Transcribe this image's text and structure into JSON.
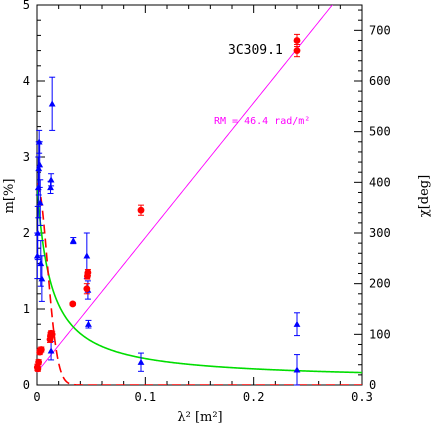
{
  "chart_data": {
    "type": "scatter",
    "source_label": "3C309.1",
    "rm_label": "RM =  46.4 rad/m²",
    "xlabel": "λ² [m²]",
    "ylabel_left": "m[%]",
    "ylabel_right": "χ[deg]",
    "xlim": [
      0,
      0.3
    ],
    "ylim_left": [
      0,
      5
    ],
    "ylim_right": [
      0,
      750
    ],
    "x_ticks": [
      0,
      0.1,
      0.2,
      0.3
    ],
    "x_tick_labels": [
      "0",
      "0.1",
      "0.2",
      "0.3"
    ],
    "y_left_ticks": [
      0,
      1,
      2,
      3,
      4,
      5
    ],
    "y_left_tick_labels": [
      "0",
      "1",
      "2",
      "3",
      "4",
      "5"
    ],
    "y_right_ticks": [
      0,
      100,
      200,
      300,
      400,
      500,
      600,
      700
    ],
    "y_right_tick_labels": [
      "0",
      "100",
      "200",
      "300",
      "400",
      "500",
      "600",
      "700"
    ],
    "colors": {
      "polarization_points": "#0000ff",
      "angle_points": "#ff0000",
      "rm_fit": "#ff00ff",
      "depol_model_green": "#00dd00",
      "depol_model_red": "#ff0000",
      "axes": "#000000"
    },
    "series": [
      {
        "marker": "triangle",
        "axis": "left",
        "color": "#0000ff",
        "points": [
          {
            "x": 0.0003,
            "y": 1.7,
            "err": 0.3
          },
          {
            "x": 0.0007,
            "y": 2.0,
            "err": 0.35
          },
          {
            "x": 0.0012,
            "y": 2.6,
            "err": 0.4
          },
          {
            "x": 0.0016,
            "y": 2.85,
            "err": 0.35
          },
          {
            "x": 0.002,
            "y": 3.2,
            "err": 0.15
          },
          {
            "x": 0.0025,
            "y": 2.9,
            "err": 0.3
          },
          {
            "x": 0.003,
            "y": 2.4,
            "err": 0.3
          },
          {
            "x": 0.0035,
            "y": 1.6,
            "err": 0.3
          },
          {
            "x": 0.0045,
            "y": 1.4,
            "err": 0.3
          },
          {
            "x": 0.0125,
            "y": 2.6,
            "err": 0.08
          },
          {
            "x": 0.013,
            "y": 2.7,
            "err": 0.08
          },
          {
            "x": 0.013,
            "y": 0.45,
            "err": 0.12
          },
          {
            "x": 0.014,
            "y": 3.7,
            "err": 0.35
          },
          {
            "x": 0.0335,
            "y": 1.9,
            "err": 0.04
          },
          {
            "x": 0.046,
            "y": 1.7,
            "err": 0.3
          },
          {
            "x": 0.047,
            "y": 1.25,
            "err": 0.12
          },
          {
            "x": 0.0475,
            "y": 0.8,
            "err": 0.05
          },
          {
            "x": 0.096,
            "y": 0.3,
            "err": 0.12
          },
          {
            "x": 0.24,
            "y": 0.8,
            "err": 0.15
          },
          {
            "x": 0.24,
            "y": 0.2,
            "err": 0.2
          }
        ]
      },
      {
        "marker": "circle",
        "axis": "right",
        "color": "#ff0000",
        "points": [
          {
            "x": 0.0003,
            "y": 35,
            "err": 6
          },
          {
            "x": 0.0008,
            "y": 32,
            "err": 5
          },
          {
            "x": 0.0015,
            "y": 45,
            "err": 5
          },
          {
            "x": 0.0025,
            "y": 65,
            "err": 5
          },
          {
            "x": 0.003,
            "y": 68,
            "err": 5
          },
          {
            "x": 0.004,
            "y": 70,
            "err": 5
          },
          {
            "x": 0.012,
            "y": 90,
            "err": 6
          },
          {
            "x": 0.0125,
            "y": 98,
            "err": 6
          },
          {
            "x": 0.013,
            "y": 102,
            "err": 5
          },
          {
            "x": 0.014,
            "y": 100,
            "err": 6
          },
          {
            "x": 0.033,
            "y": 160,
            "err": 3
          },
          {
            "x": 0.046,
            "y": 190,
            "err": 10
          },
          {
            "x": 0.0465,
            "y": 215,
            "err": 6
          },
          {
            "x": 0.047,
            "y": 222,
            "err": 6
          },
          {
            "x": 0.096,
            "y": 345,
            "err": 10
          },
          {
            "x": 0.24,
            "y": 680,
            "err": 12
          },
          {
            "x": 0.24,
            "y": 660,
            "err": 12
          }
        ]
      }
    ],
    "fit_lines": [
      {
        "kind": "rm_linear",
        "axis": "right",
        "color": "#ff00ff",
        "slope_deg_per_m2": 2660,
        "intercept_deg": 25
      },
      {
        "kind": "depolarization_green",
        "axis": "left",
        "color": "#00dd00",
        "m0": 2.65,
        "floor": 0.06,
        "scale": 0.0125
      },
      {
        "kind": "depolarization_red_dashed",
        "axis": "left",
        "color": "#ff0000",
        "m0": 2.65,
        "sigma": 0.0095
      }
    ]
  }
}
